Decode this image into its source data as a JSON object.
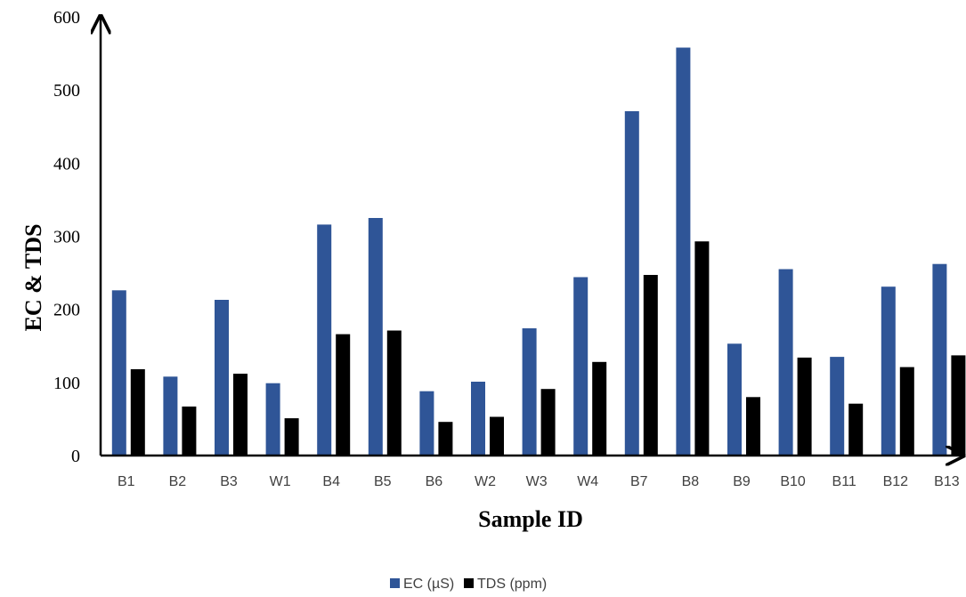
{
  "chart_data": {
    "type": "bar",
    "xlabel": "Sample ID",
    "ylabel": "EC & TDS",
    "ylim": [
      0,
      600
    ],
    "yticks": [
      0,
      100,
      200,
      300,
      400,
      500,
      600
    ],
    "grid": false,
    "legend_position": "bottom",
    "categories": [
      "B1",
      "B2",
      "B3",
      "W1",
      "B4",
      "B5",
      "B6",
      "W2",
      "W3",
      "W4",
      "B7",
      "B8",
      "B9",
      "B10",
      "B11",
      "B12",
      "B13"
    ],
    "series": [
      {
        "name": "EC (µS)",
        "color": "#2f5597",
        "values": [
          226,
          108,
          213,
          99,
          316,
          325,
          88,
          101,
          174,
          244,
          471,
          558,
          153,
          255,
          135,
          231,
          262
        ]
      },
      {
        "name": "TDS (ppm)",
        "color": "#000000",
        "values": [
          118,
          67,
          112,
          51,
          166,
          171,
          46,
          53,
          91,
          128,
          247,
          293,
          80,
          134,
          71,
          121,
          137
        ]
      }
    ]
  }
}
